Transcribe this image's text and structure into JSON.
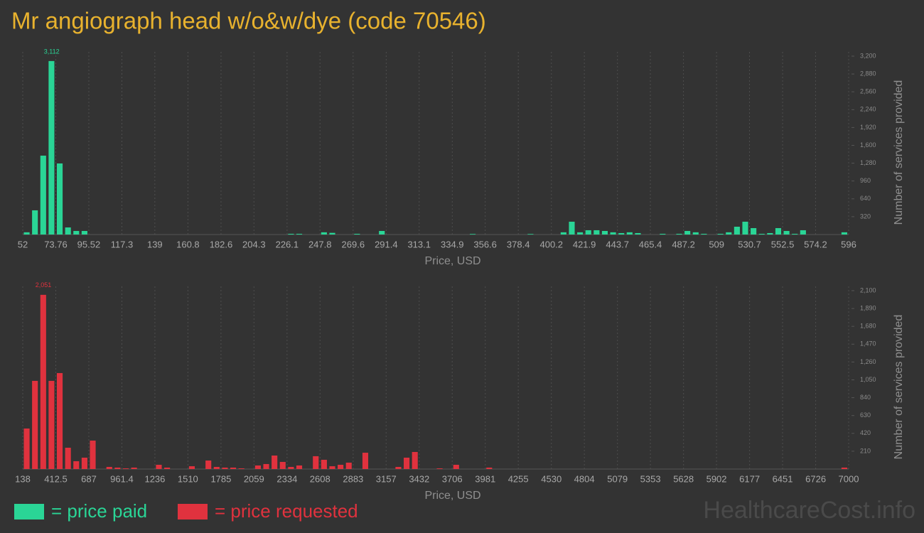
{
  "title": "Mr angiograph head w/o&w/dye (code 70546)",
  "watermark": "HealthcareCost.info",
  "chart_data": [
    {
      "type": "histogram",
      "xlabel": "Price, USD",
      "ylabel": "Number of services provided",
      "grid": true,
      "xlim": [
        52,
        596
      ],
      "xticks": [
        52,
        73.76,
        95.52,
        117.3,
        139,
        160.8,
        182.6,
        204.3,
        226.1,
        247.8,
        269.6,
        291.4,
        313.1,
        334.9,
        356.6,
        378.4,
        400.2,
        421.9,
        443.7,
        465.4,
        487.2,
        509,
        530.7,
        552.5,
        574.2,
        596
      ],
      "ylim": [
        0,
        3200
      ],
      "yticks": [
        320,
        640,
        960,
        {
          "value": 1280,
          "label": "1,280"
        },
        {
          "value": 1600,
          "label": "1,600"
        },
        {
          "value": 1920,
          "label": "1,920"
        },
        {
          "value": 2240,
          "label": "2,240"
        },
        {
          "value": 2560,
          "label": "2,560"
        },
        {
          "value": 2880,
          "label": "2,880"
        },
        {
          "value": 3200,
          "label": "3,200"
        }
      ],
      "bins": [
        52,
        57.44,
        62.88,
        68.32,
        73.76,
        79.2,
        84.64,
        90.08,
        95.52,
        100.96,
        106.4,
        111.84,
        117.28,
        122.72,
        128.16,
        133.6,
        139.04,
        144.48,
        149.92,
        155.36,
        160.8,
        166.24,
        171.68,
        177.12,
        182.56,
        188,
        193.44,
        198.88,
        204.32,
        209.76,
        215.2,
        220.64,
        226.08,
        231.52,
        236.96,
        242.4,
        247.84,
        253.28,
        258.72,
        264.16,
        269.6,
        275.04,
        280.48,
        285.92,
        291.36,
        296.8,
        302.24,
        307.68,
        313.12,
        318.56,
        324,
        329.44,
        334.88,
        340.32,
        345.76,
        351.2,
        356.64,
        362.08,
        367.52,
        372.96,
        378.4,
        383.84,
        389.28,
        394.72,
        400.16,
        405.6,
        411.04,
        416.48,
        421.92,
        427.36,
        432.8,
        438.24,
        443.68,
        449.12,
        454.56,
        460,
        465.44,
        470.88,
        476.32,
        481.76,
        487.2,
        492.64,
        498.08,
        503.52,
        508.96,
        514.4,
        519.84,
        525.28,
        530.72,
        536.16,
        541.6,
        547.04,
        552.48,
        557.92,
        563.36,
        568.8,
        574.24,
        579.68,
        585.12,
        590.56,
        596
      ],
      "series": [
        {
          "name": "= price paid",
          "color": "#2ad596",
          "values": [
            40,
            434,
            1415,
            3112,
            1275,
            127,
            64,
            64,
            0,
            0,
            0,
            0,
            0,
            0,
            0,
            0,
            0,
            0,
            0,
            0,
            0,
            0,
            0,
            0,
            0,
            0,
            0,
            0,
            0,
            0,
            0,
            0,
            13,
            13,
            0,
            0,
            40,
            30,
            0,
            0,
            13,
            0,
            0,
            64,
            0,
            0,
            0,
            0,
            0,
            0,
            0,
            0,
            0,
            0,
            10,
            0,
            0,
            0,
            0,
            0,
            0,
            10,
            0,
            0,
            0,
            40,
            230,
            40,
            77,
            77,
            64,
            40,
            26,
            40,
            26,
            0,
            0,
            13,
            0,
            13,
            64,
            40,
            13,
            0,
            13,
            40,
            140,
            230,
            115,
            13,
            26,
            115,
            64,
            13,
            77,
            0,
            0,
            0,
            0,
            40
          ],
          "value_labels": [
            null,
            null,
            null,
            "3,112",
            null,
            null,
            null,
            null,
            null,
            null,
            null,
            null,
            null,
            null,
            null,
            null,
            null,
            null,
            null,
            null,
            null,
            null,
            null,
            null,
            null,
            null,
            null,
            null,
            null,
            null,
            null,
            null,
            null,
            null,
            null,
            null,
            null,
            null,
            null,
            null,
            null,
            null,
            null,
            null,
            null,
            null,
            null,
            null,
            null,
            null,
            null,
            null,
            null,
            null,
            null,
            null,
            null,
            null,
            null,
            null,
            null,
            null,
            null,
            null,
            null,
            null,
            null,
            null,
            null,
            null,
            null,
            null,
            null,
            null,
            null,
            null,
            null,
            null,
            null,
            null,
            null,
            null,
            null,
            null,
            null,
            null,
            null,
            null,
            null,
            null,
            null,
            null,
            null,
            null,
            null,
            null,
            null,
            null,
            null,
            null
          ]
        }
      ]
    },
    {
      "type": "histogram",
      "xlabel": "Price, USD",
      "ylabel": "Number of services provided",
      "grid": true,
      "xlim": [
        138,
        7000
      ],
      "xticks": [
        138,
        412.5,
        687,
        961.4,
        1236,
        1510,
        1785,
        2059,
        2334,
        2608,
        2883,
        3157,
        3432,
        3706,
        3981,
        4255,
        4530,
        4804,
        5079,
        5353,
        5628,
        5902,
        6177,
        6451,
        6726,
        7000
      ],
      "ylim": [
        0,
        2100
      ],
      "yticks": [
        210,
        420,
        630,
        840,
        {
          "value": 1050,
          "label": "1,050"
        },
        {
          "value": 1260,
          "label": "1,260"
        },
        {
          "value": 1470,
          "label": "1,470"
        },
        {
          "value": 1680,
          "label": "1,680"
        },
        {
          "value": 1890,
          "label": "1,890"
        },
        {
          "value": 2100,
          "label": "2,100"
        }
      ],
      "bins": [
        138,
        206.62,
        275.24,
        343.86,
        412.48,
        481.1,
        549.72,
        618.34,
        686.96,
        755.58,
        824.2,
        892.82,
        961.44,
        1030.06,
        1098.68,
        1167.3,
        1235.92,
        1304.54,
        1373.16,
        1441.78,
        1510.4,
        1579.02,
        1647.64,
        1716.26,
        1784.88,
        1853.5,
        1922.12,
        1990.74,
        2059.36,
        2127.98,
        2196.6,
        2265.22,
        2333.84,
        2402.46,
        2471.08,
        2539.7,
        2608.32,
        2676.94,
        2745.56,
        2814.18,
        2882.8,
        2951.42,
        3020.04,
        3088.66,
        3157.28,
        3225.9,
        3294.52,
        3363.14,
        3431.76,
        3500.38,
        3569,
        3637.62,
        3706.24,
        3774.86,
        3843.48,
        3912.1,
        3980.72,
        4049.34,
        4117.96,
        4186.58,
        4255.2,
        4323.82,
        4392.44,
        4461.06,
        4529.68,
        4598.3,
        4666.92,
        4735.54,
        4804.16,
        4872.78,
        4941.4,
        5010.02,
        5078.64,
        5147.26,
        5215.88,
        5284.5,
        5353.12,
        5421.74,
        5490.36,
        5558.98,
        5627.6,
        5696.22,
        5764.84,
        5833.46,
        5902.08,
        5970.7,
        6039.32,
        6107.94,
        6176.56,
        6245.18,
        6313.8,
        6382.42,
        6451.04,
        6519.66,
        6588.28,
        6656.9,
        6725.52,
        6794.14,
        6862.76,
        6931.38,
        7000
      ],
      "series": [
        {
          "name": "= price requested",
          "color": "#e0323e",
          "values": [
            477,
            1038,
            2051,
            1038,
            1130,
            251,
            92,
            134,
            335,
            0,
            25,
            17,
            8,
            17,
            0,
            0,
            50,
            17,
            0,
            0,
            33,
            0,
            100,
            25,
            17,
            17,
            8,
            0,
            42,
            59,
            159,
            84,
            25,
            42,
            0,
            151,
            109,
            33,
            50,
            75,
            0,
            192,
            0,
            0,
            0,
            25,
            134,
            201,
            0,
            0,
            8,
            0,
            50,
            0,
            0,
            0,
            17,
            0,
            0,
            0,
            0,
            0,
            0,
            0,
            0,
            0,
            0,
            0,
            0,
            0,
            0,
            0,
            0,
            0,
            0,
            0,
            0,
            0,
            0,
            0,
            0,
            0,
            0,
            0,
            0,
            0,
            0,
            0,
            0,
            0,
            0,
            0,
            0,
            0,
            0,
            0,
            0,
            0,
            0,
            17
          ],
          "value_labels": [
            null,
            null,
            "2,051",
            null,
            null,
            null,
            null,
            null,
            null,
            null,
            null,
            null,
            null,
            null,
            null,
            null,
            null,
            null,
            null,
            null,
            null,
            null,
            null,
            null,
            null,
            null,
            null,
            null,
            null,
            null,
            null,
            null,
            null,
            null,
            null,
            null,
            null,
            null,
            null,
            null,
            null,
            null,
            null,
            null,
            null,
            null,
            null,
            null,
            null,
            null,
            null,
            null,
            null,
            null,
            null,
            null,
            null,
            null,
            null,
            null,
            null,
            null,
            null,
            null,
            null,
            null,
            null,
            null,
            null,
            null,
            null,
            null,
            null,
            null,
            null,
            null,
            null,
            null,
            null,
            null,
            null,
            null,
            null,
            null,
            null,
            null,
            null,
            null,
            null,
            null,
            null,
            null,
            null,
            null,
            null,
            null,
            null,
            null,
            null,
            null
          ]
        }
      ]
    }
  ]
}
